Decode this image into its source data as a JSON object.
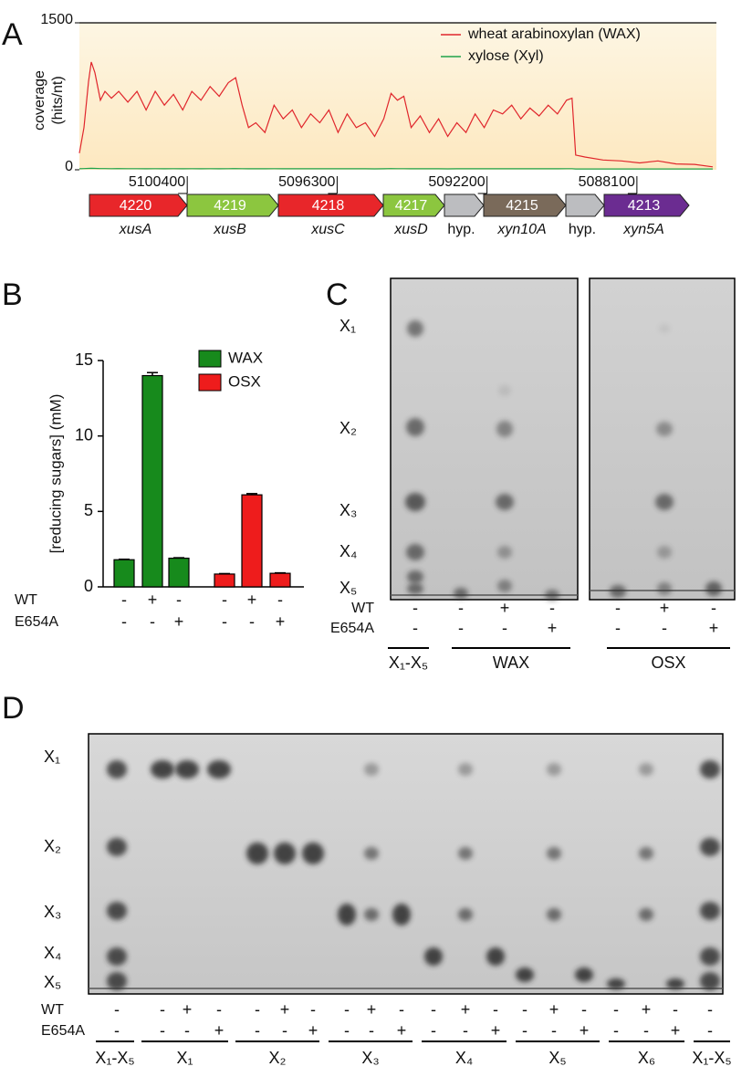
{
  "chart_data": [
    {
      "panel": "A",
      "type": "line",
      "ylabel": [
        "coverage",
        "(hits/nt)"
      ],
      "x": [
        5103350,
        5103225,
        5103100,
        5103025,
        5102925,
        5102775,
        5102650,
        5102475,
        5102275,
        5102025,
        5101775,
        5101525,
        5101275,
        5101025,
        5100775,
        5100525,
        5100275,
        5100025,
        5099775,
        5099525,
        5099275,
        5099075,
        5098900,
        5098725,
        5098525,
        5098275,
        5098025,
        5097775,
        5097525,
        5097275,
        5097025,
        5096775,
        5096525,
        5096275,
        5096025,
        5095775,
        5095525,
        5095275,
        5095025,
        5094825,
        5094650,
        5094475,
        5094275,
        5094025,
        5093775,
        5093525,
        5093275,
        5093025,
        5092775,
        5092525,
        5092275,
        5092025,
        5091775,
        5091525,
        5091275,
        5091025,
        5090775,
        5090525,
        5090275,
        5090025,
        5089875,
        5089775,
        5089525,
        5089025,
        5088525,
        5088025,
        5087525,
        5087025,
        5086525,
        5086025
      ],
      "xlim": [
        5103350,
        5085925
      ],
      "xticks": [
        5100400,
        5096300,
        5092200,
        5088100
      ],
      "ylim": [
        0,
        1500
      ],
      "yticks": [
        0,
        1500
      ],
      "legend": "upper right",
      "series": [
        {
          "name": "wheat arabinoxylan (WAX)",
          "color": "#e0262c",
          "values": [
            170,
            430,
            900,
            1100,
            990,
            710,
            800,
            730,
            800,
            690,
            800,
            610,
            800,
            660,
            770,
            610,
            800,
            710,
            850,
            750,
            890,
            940,
            660,
            430,
            480,
            380,
            660,
            520,
            610,
            430,
            570,
            480,
            610,
            380,
            570,
            430,
            480,
            340,
            520,
            780,
            710,
            750,
            430,
            550,
            380,
            520,
            340,
            480,
            380,
            570,
            430,
            610,
            570,
            660,
            520,
            630,
            550,
            660,
            570,
            710,
            730,
            150,
            130,
            100,
            90,
            70,
            90,
            60,
            55,
            30
          ]
        },
        {
          "name": "xylose (Xyl)",
          "color": "#1fa34a",
          "values": [
            10,
            12,
            14,
            15,
            14,
            12,
            12,
            11,
            12,
            11,
            11,
            10,
            11,
            10,
            11,
            10,
            11,
            10,
            11,
            10,
            11,
            12,
            11,
            10,
            10,
            10,
            11,
            10,
            10,
            10,
            10,
            10,
            10,
            10,
            10,
            10,
            10,
            9,
            10,
            12,
            11,
            11,
            10,
            10,
            10,
            10,
            9,
            10,
            10,
            10,
            10,
            10,
            10,
            10,
            10,
            10,
            10,
            10,
            10,
            11,
            11,
            8,
            8,
            8,
            8,
            8,
            8,
            8,
            8,
            8
          ]
        }
      ]
    },
    {
      "panel": "B",
      "type": "bar",
      "ylabel": "[reducing sugars] (mM)",
      "ylim": [
        0,
        15
      ],
      "yticks": [
        0,
        5,
        10,
        15
      ],
      "legend": "upper right",
      "series": [
        {
          "name": "WAX",
          "color": "#178a1c",
          "values": [
            1.8,
            14.0,
            1.9
          ],
          "errors": [
            0.03,
            0.2,
            0.03
          ]
        },
        {
          "name": "OSX",
          "color": "#ee1c1c",
          "values": [
            0.85,
            6.1,
            0.9
          ],
          "errors": [
            0.03,
            0.08,
            0.03
          ]
        }
      ],
      "conditions": [
        {
          "label": "WT",
          "marks": [
            "-",
            "+",
            "-",
            "-",
            "+",
            "-"
          ]
        },
        {
          "label": "E654A",
          "marks": [
            "-",
            "-",
            "+",
            "-",
            "-",
            "+"
          ]
        }
      ]
    }
  ],
  "gene_map": {
    "genes": [
      {
        "label": "4220",
        "name": "xusA",
        "color": "#e8262a"
      },
      {
        "label": "4219",
        "name": "xusB",
        "color": "#8cc63f"
      },
      {
        "label": "4218",
        "name": "xusC",
        "color": "#e8262a"
      },
      {
        "label": "4217",
        "name": "xusD",
        "color": "#8cc63f"
      },
      {
        "name": "hyp.",
        "color": "#bcbdc0"
      },
      {
        "label": "4215",
        "name": "xyn10A",
        "color": "#7a6a5a"
      },
      {
        "name": "hyp.",
        "color": "#bcbdc0"
      },
      {
        "label": "4213",
        "name": "xyn5A",
        "color": "#6b2c91"
      }
    ]
  },
  "tlc": [
    {
      "panel": "C",
      "standards": [
        "X₁",
        "X₂",
        "X₃",
        "X₄",
        "X₅"
      ],
      "conditions": [
        {
          "label": "WT",
          "marks": [
            "-",
            "-",
            "+",
            "-",
            "-",
            "+",
            "-"
          ]
        },
        {
          "label": "E654A",
          "marks": [
            "-",
            "-",
            "-",
            "+",
            "-",
            "-",
            "+"
          ]
        }
      ],
      "groups": [
        "X₁-X₅",
        "WAX",
        "OSX"
      ]
    },
    {
      "panel": "D",
      "standards": [
        "X₁",
        "X₂",
        "X₃",
        "X₄",
        "X₅"
      ],
      "conditions": [
        {
          "label": "WT",
          "marks": [
            "-",
            "-",
            "+",
            "-",
            "-",
            "+",
            "-",
            "-",
            "+",
            "-",
            "-",
            "+",
            "-",
            "-",
            "+",
            "-",
            "-",
            "+",
            "-",
            "-"
          ]
        },
        {
          "label": "E654A",
          "marks": [
            "-",
            "-",
            "-",
            "+",
            "-",
            "-",
            "+",
            "-",
            "-",
            "+",
            "-",
            "-",
            "+",
            "-",
            "-",
            "+",
            "-",
            "-",
            "+",
            "-"
          ]
        }
      ],
      "groups": [
        "X₁-X₅",
        "X₁",
        "X₂",
        "X₃",
        "X₄",
        "X₅",
        "X₆",
        "X₁-X₅"
      ]
    }
  ]
}
